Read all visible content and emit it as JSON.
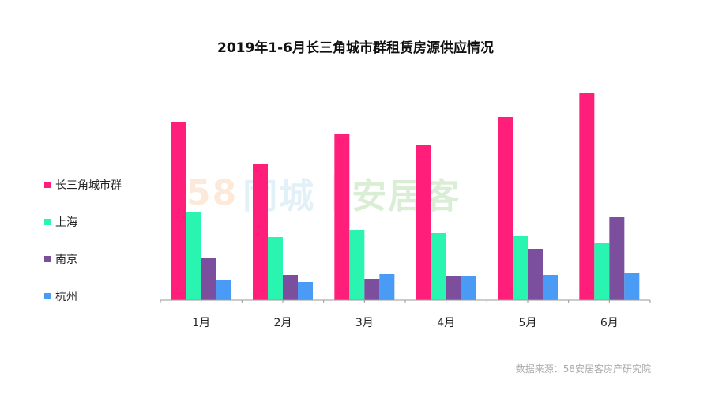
{
  "chart_data": {
    "type": "bar",
    "title": "2019年1-6月长三角城市群租赁房源供应情况",
    "categories": [
      "1月",
      "2月",
      "3月",
      "4月",
      "5月",
      "6月"
    ],
    "series": [
      {
        "name": "长三角城市群",
        "color": "#ff1f7a",
        "values": [
          226,
          172,
          211,
          197,
          232,
          262
        ]
      },
      {
        "name": "上海",
        "color": "#2af5b0",
        "values": [
          112,
          80,
          89,
          85,
          81,
          72
        ]
      },
      {
        "name": "南京",
        "color": "#7b4f9e",
        "values": [
          53,
          32,
          27,
          30,
          65,
          105
        ]
      },
      {
        "name": "杭州",
        "color": "#4a9bf5",
        "values": [
          25,
          23,
          33,
          30,
          32,
          34
        ]
      }
    ],
    "ylim": [
      0,
      270
    ],
    "grid": false,
    "legend_position": "left"
  },
  "source_note": "数据来源：58安居客房产研究院",
  "watermark": {
    "digits": "58",
    "tc": "同城",
    "ajk": "安居客"
  }
}
